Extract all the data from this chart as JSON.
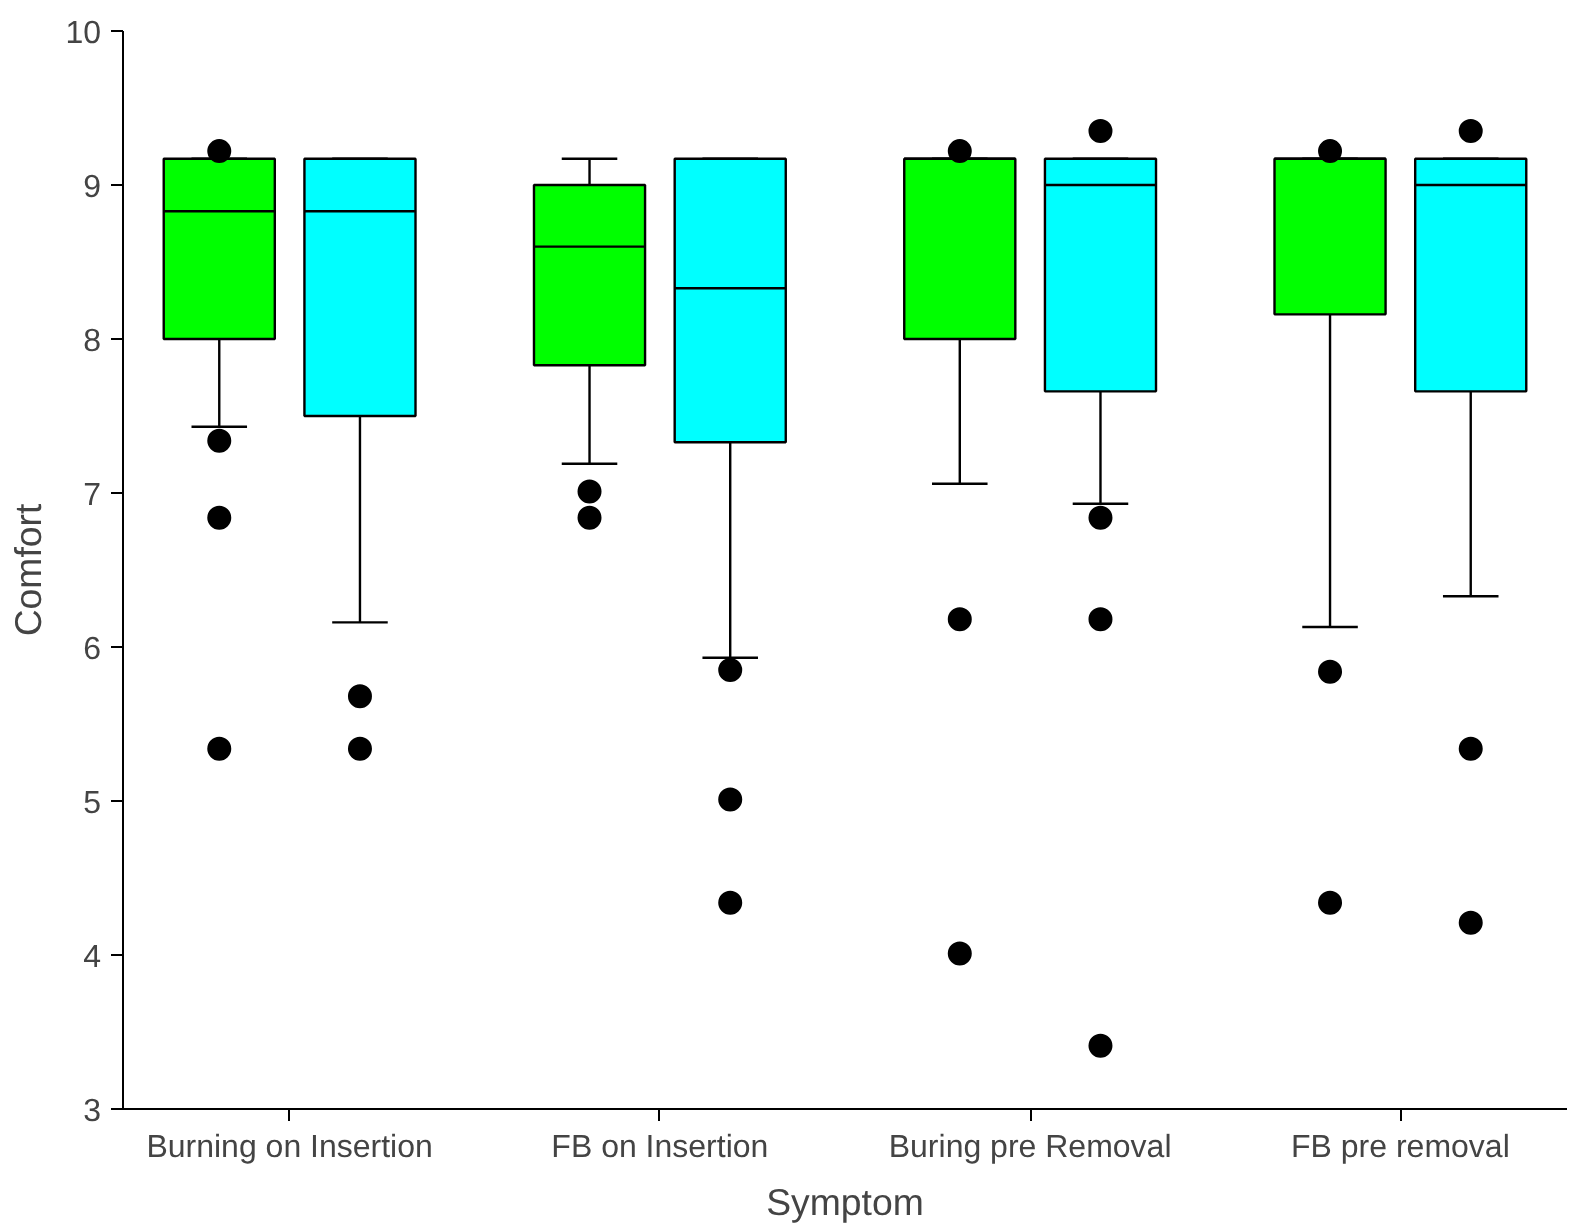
{
  "chart_data": {
    "type": "box",
    "xlabel": "Symptom",
    "ylabel": "Comfort",
    "categories": [
      "Burning on Insertion",
      "FB on Insertion",
      "Buring pre Removal",
      "FB pre removal"
    ],
    "series": [
      {
        "color": "#00ff00",
        "boxes": [
          {
            "low": 7.43,
            "q1": 8.0,
            "median": 8.83,
            "q3": 9.17,
            "high": 9.17,
            "outliers": [
              9.22,
              7.34,
              6.84,
              5.34
            ]
          },
          {
            "low": 7.19,
            "q1": 7.83,
            "median": 8.6,
            "q3": 9.0,
            "high": 9.17,
            "outliers": [
              7.01,
              6.84
            ]
          },
          {
            "low": 7.06,
            "q1": 8.0,
            "median": 9.17,
            "q3": 9.17,
            "high": 9.17,
            "outliers": [
              9.22,
              6.18,
              4.01
            ]
          },
          {
            "low": 6.13,
            "q1": 8.16,
            "median": 9.17,
            "q3": 9.17,
            "high": 9.17,
            "outliers": [
              9.22,
              5.84,
              4.34
            ]
          }
        ]
      },
      {
        "color": "#00ffff",
        "boxes": [
          {
            "low": 6.16,
            "q1": 7.5,
            "median": 8.83,
            "q3": 9.17,
            "high": 9.17,
            "outliers": [
              5.68,
              5.34
            ]
          },
          {
            "low": 5.93,
            "q1": 7.33,
            "median": 8.33,
            "q3": 9.17,
            "high": 9.17,
            "outliers": [
              5.85,
              5.01,
              4.34
            ]
          },
          {
            "low": 6.93,
            "q1": 7.66,
            "median": 9.0,
            "q3": 9.17,
            "high": 9.17,
            "outliers": [
              9.35,
              6.84,
              6.18,
              3.41
            ]
          },
          {
            "low": 6.33,
            "q1": 7.66,
            "median": 9.0,
            "q3": 9.17,
            "high": 9.17,
            "outliers": [
              9.35,
              5.34,
              4.21
            ]
          }
        ]
      }
    ],
    "ylim": [
      3,
      10
    ],
    "yticks": [
      3,
      4,
      5,
      6,
      7,
      8,
      9,
      10
    ],
    "grid": false
  }
}
